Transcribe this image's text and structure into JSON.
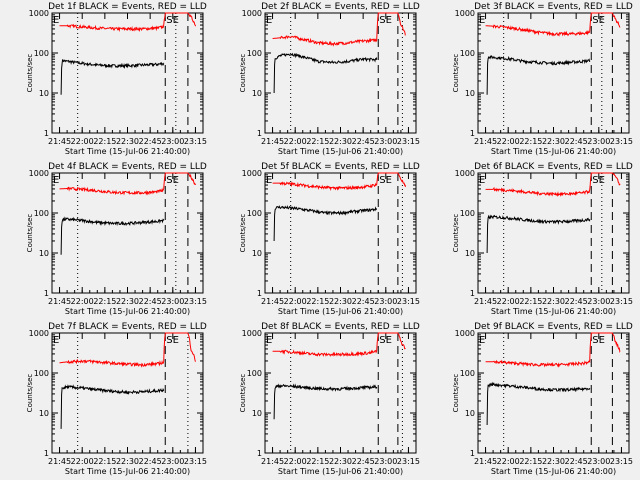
{
  "x_axis_label": "Start Time (15-Jul-06 21:40:00)",
  "y_axis_label": "Counts/sec",
  "x_tick_labels": [
    "21:45",
    "22:00",
    "22:15",
    "22:30",
    "22:45",
    "23:00",
    "23:15"
  ],
  "y_tick_labels": [
    "1",
    "10",
    "100",
    "1000"
  ],
  "marker_labels": {
    "left": "E",
    "se": "SE"
  },
  "colors": {
    "events": "#000000",
    "lld": "#ff0000",
    "background": "#f0f0f0"
  },
  "chart_data": [
    {
      "type": "line",
      "title": "Det 1f BLACK = Events, RED = LLD",
      "xlim_minutes": [
        0,
        100
      ],
      "ylim": [
        1,
        1000
      ],
      "yscale": "log",
      "vertical_lines": [
        {
          "x": 17,
          "style": "dotted"
        },
        {
          "x": 75,
          "style": "dashed"
        },
        {
          "x": 82,
          "style": "dotted"
        },
        {
          "x": 90,
          "style": "dashed"
        }
      ],
      "series": [
        {
          "name": "Events",
          "color": "#000000",
          "x": [
            6,
            6.5,
            7,
            10,
            20,
            30,
            40,
            50,
            60,
            70,
            74
          ],
          "y": [
            9,
            55,
            65,
            62,
            55,
            50,
            48,
            48,
            50,
            52,
            55
          ]
        },
        {
          "name": "LLD",
          "color": "#ff0000",
          "x": [
            5,
            10,
            20,
            30,
            40,
            50,
            60,
            70,
            74,
            75,
            76,
            90,
            92,
            95
          ],
          "y": [
            480,
            480,
            450,
            420,
            400,
            400,
            400,
            420,
            460,
            1000,
            1000,
            1000,
            800,
            500
          ]
        }
      ]
    },
    {
      "type": "line",
      "title": "Det 2f BLACK = Events, RED = LLD",
      "xlim_minutes": [
        0,
        100
      ],
      "ylim": [
        1,
        1000
      ],
      "yscale": "log",
      "vertical_lines": [
        {
          "x": 17,
          "style": "dotted"
        },
        {
          "x": 75,
          "style": "dashed"
        },
        {
          "x": 88,
          "style": "dashed"
        },
        {
          "x": 91,
          "style": "dotted"
        }
      ],
      "series": [
        {
          "name": "Events",
          "color": "#000000",
          "x": [
            6,
            6.5,
            7,
            10,
            17,
            25,
            35,
            45,
            55,
            65,
            74
          ],
          "y": [
            10,
            70,
            75,
            85,
            95,
            80,
            62,
            58,
            62,
            70,
            68
          ]
        },
        {
          "name": "LLD",
          "color": "#ff0000",
          "x": [
            5,
            10,
            17,
            25,
            35,
            45,
            55,
            65,
            74,
            75,
            76,
            88,
            90,
            93
          ],
          "y": [
            230,
            240,
            260,
            220,
            180,
            170,
            180,
            200,
            210,
            1000,
            1000,
            1000,
            500,
            300
          ]
        }
      ]
    },
    {
      "type": "line",
      "title": "Det 3f BLACK = Events, RED = LLD",
      "xlim_minutes": [
        0,
        100
      ],
      "ylim": [
        1,
        1000
      ],
      "yscale": "log",
      "vertical_lines": [
        {
          "x": 17,
          "style": "dotted"
        },
        {
          "x": 75,
          "style": "dashed"
        },
        {
          "x": 82,
          "style": "dotted"
        },
        {
          "x": 89,
          "style": "dashed"
        }
      ],
      "series": [
        {
          "name": "Events",
          "color": "#000000",
          "x": [
            6,
            6.5,
            7,
            10,
            20,
            30,
            40,
            50,
            60,
            70,
            74
          ],
          "y": [
            9,
            75,
            80,
            78,
            72,
            62,
            58,
            55,
            58,
            62,
            65
          ]
        },
        {
          "name": "LLD",
          "color": "#ff0000",
          "x": [
            5,
            10,
            20,
            30,
            40,
            50,
            60,
            70,
            74,
            75,
            76,
            89,
            91,
            94
          ],
          "y": [
            480,
            470,
            430,
            380,
            330,
            300,
            300,
            310,
            330,
            1000,
            1000,
            1000,
            700,
            450
          ]
        }
      ]
    },
    {
      "type": "line",
      "title": "Det 4f BLACK = Events, RED = LLD",
      "xlim_minutes": [
        0,
        100
      ],
      "ylim": [
        1,
        1000
      ],
      "yscale": "log",
      "vertical_lines": [
        {
          "x": 17,
          "style": "dotted"
        },
        {
          "x": 75,
          "style": "dashed"
        },
        {
          "x": 82,
          "style": "dotted"
        },
        {
          "x": 90,
          "style": "dashed"
        }
      ],
      "series": [
        {
          "name": "Events",
          "color": "#000000",
          "x": [
            6,
            6.5,
            7,
            10,
            20,
            30,
            40,
            50,
            60,
            70,
            74
          ],
          "y": [
            9,
            60,
            68,
            70,
            65,
            58,
            55,
            55,
            58,
            62,
            65
          ]
        },
        {
          "name": "LLD",
          "color": "#ff0000",
          "x": [
            5,
            10,
            20,
            30,
            40,
            50,
            60,
            70,
            74,
            75,
            76,
            90,
            92,
            95
          ],
          "y": [
            400,
            410,
            390,
            360,
            330,
            320,
            320,
            340,
            370,
            1000,
            1000,
            1000,
            800,
            500
          ]
        }
      ]
    },
    {
      "type": "line",
      "title": "Det 5f BLACK = Events, RED = LLD",
      "xlim_minutes": [
        0,
        100
      ],
      "ylim": [
        1,
        1000
      ],
      "yscale": "log",
      "vertical_lines": [
        {
          "x": 17,
          "style": "dotted"
        },
        {
          "x": 75,
          "style": "dashed"
        },
        {
          "x": 88,
          "style": "dashed"
        },
        {
          "x": 91,
          "style": "dotted"
        }
      ],
      "series": [
        {
          "name": "Events",
          "color": "#000000",
          "x": [
            6,
            6.5,
            7,
            10,
            20,
            30,
            40,
            50,
            60,
            70,
            74
          ],
          "y": [
            20,
            120,
            135,
            140,
            130,
            115,
            100,
            100,
            110,
            120,
            125
          ]
        },
        {
          "name": "LLD",
          "color": "#ff0000",
          "x": [
            5,
            10,
            20,
            30,
            40,
            50,
            60,
            70,
            74,
            75,
            76,
            88,
            90,
            93
          ],
          "y": [
            560,
            560,
            520,
            470,
            430,
            420,
            430,
            470,
            520,
            1000,
            1000,
            1000,
            700,
            450
          ]
        }
      ]
    },
    {
      "type": "line",
      "title": "Det 6f BLACK = Events, RED = LLD",
      "xlim_minutes": [
        0,
        100
      ],
      "ylim": [
        1,
        1000
      ],
      "yscale": "log",
      "vertical_lines": [
        {
          "x": 17,
          "style": "dotted"
        },
        {
          "x": 75,
          "style": "dashed"
        },
        {
          "x": 82,
          "style": "dotted"
        },
        {
          "x": 89,
          "style": "dashed"
        }
      ],
      "series": [
        {
          "name": "Events",
          "color": "#000000",
          "x": [
            6,
            6.5,
            7,
            10,
            20,
            30,
            40,
            50,
            60,
            70,
            74
          ],
          "y": [
            10,
            70,
            78,
            80,
            75,
            68,
            62,
            60,
            62,
            66,
            70
          ]
        },
        {
          "name": "LLD",
          "color": "#ff0000",
          "x": [
            5,
            10,
            20,
            30,
            40,
            50,
            60,
            70,
            74,
            75,
            76,
            89,
            91,
            94
          ],
          "y": [
            390,
            390,
            370,
            340,
            310,
            300,
            300,
            320,
            350,
            1000,
            1000,
            1000,
            800,
            500
          ]
        }
      ]
    },
    {
      "type": "line",
      "title": "Det 7f BLACK = Events, RED = LLD",
      "xlim_minutes": [
        0,
        100
      ],
      "ylim": [
        1,
        1000
      ],
      "yscale": "log",
      "vertical_lines": [
        {
          "x": 17,
          "style": "dotted"
        },
        {
          "x": 75,
          "style": "dashed"
        },
        {
          "x": 90,
          "style": "dotted"
        }
      ],
      "series": [
        {
          "name": "Events",
          "color": "#000000",
          "x": [
            6,
            6.5,
            7,
            10,
            20,
            30,
            40,
            50,
            60,
            70,
            74
          ],
          "y": [
            4,
            40,
            42,
            45,
            42,
            38,
            35,
            33,
            34,
            36,
            38
          ]
        },
        {
          "name": "LLD",
          "color": "#ff0000",
          "x": [
            5,
            10,
            20,
            30,
            40,
            50,
            60,
            70,
            74,
            75,
            76,
            90,
            92,
            95
          ],
          "y": [
            180,
            190,
            200,
            190,
            175,
            165,
            160,
            170,
            185,
            1000,
            1000,
            1000,
            400,
            200
          ]
        }
      ]
    },
    {
      "type": "line",
      "title": "Det 8f BLACK = Events, RED = LLD",
      "xlim_minutes": [
        0,
        100
      ],
      "ylim": [
        1,
        1000
      ],
      "yscale": "log",
      "vertical_lines": [
        {
          "x": 17,
          "style": "dotted"
        },
        {
          "x": 75,
          "style": "dashed"
        },
        {
          "x": 88,
          "style": "dashed"
        },
        {
          "x": 91,
          "style": "dotted"
        }
      ],
      "series": [
        {
          "name": "Events",
          "color": "#000000",
          "x": [
            6,
            6.5,
            7,
            10,
            20,
            30,
            40,
            50,
            60,
            70,
            74
          ],
          "y": [
            7,
            40,
            45,
            48,
            46,
            42,
            40,
            40,
            42,
            44,
            45
          ]
        },
        {
          "name": "LLD",
          "color": "#ff0000",
          "x": [
            5,
            10,
            20,
            30,
            40,
            50,
            60,
            70,
            74,
            75,
            76,
            88,
            90,
            93
          ],
          "y": [
            350,
            350,
            330,
            300,
            290,
            290,
            300,
            320,
            350,
            1000,
            1000,
            1000,
            600,
            400
          ]
        }
      ]
    },
    {
      "type": "line",
      "title": "Det 9f BLACK = Events, RED = LLD",
      "xlim_minutes": [
        0,
        100
      ],
      "ylim": [
        1,
        1000
      ],
      "yscale": "log",
      "vertical_lines": [
        {
          "x": 17,
          "style": "dotted"
        },
        {
          "x": 75,
          "style": "dashed"
        },
        {
          "x": 89,
          "style": "dashed"
        }
      ],
      "series": [
        {
          "name": "Events",
          "color": "#000000",
          "x": [
            6,
            6.5,
            7,
            10,
            20,
            30,
            40,
            50,
            60,
            70,
            74
          ],
          "y": [
            5,
            45,
            50,
            52,
            48,
            44,
            40,
            38,
            38,
            40,
            42
          ]
        },
        {
          "name": "LLD",
          "color": "#ff0000",
          "x": [
            5,
            10,
            20,
            30,
            40,
            50,
            60,
            70,
            74,
            75,
            76,
            89,
            91,
            94
          ],
          "y": [
            190,
            190,
            180,
            170,
            160,
            160,
            165,
            175,
            190,
            1000,
            1000,
            1000,
            600,
            350
          ]
        }
      ]
    }
  ]
}
